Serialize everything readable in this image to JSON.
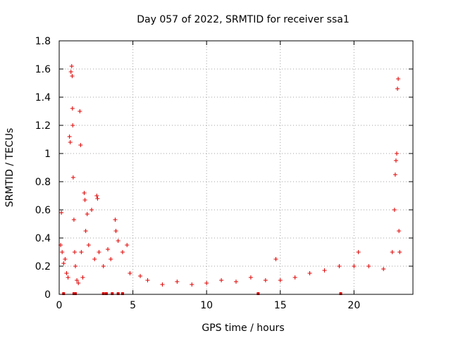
{
  "chart_data": {
    "type": "scatter",
    "title": "Day 057 of 2022, SRMTID for receiver ssa1",
    "xlabel": "GPS time / hours",
    "ylabel": "SRMTID / TECUs",
    "xlim": [
      0,
      24
    ],
    "ylim": [
      0,
      1.8
    ],
    "xticks": [
      0,
      5,
      10,
      15,
      20
    ],
    "yticks": [
      0,
      0.2,
      0.4,
      0.6,
      0.8,
      1,
      1.2,
      1.4,
      1.6,
      1.8
    ],
    "xtick_labels": [
      "0",
      "5",
      "10",
      "15",
      "20"
    ],
    "ytick_labels": [
      "0",
      "0.2",
      "0.4",
      "0.6",
      "0.8",
      "1",
      "1.2",
      "1.4",
      "1.6",
      "1.8"
    ],
    "grid": true,
    "marker": "plus",
    "series": [
      {
        "name": "SRMTID",
        "color": "#e00000",
        "points": [
          [
            0.1,
            0.35
          ],
          [
            0.15,
            0.58
          ],
          [
            0.2,
            0.3
          ],
          [
            0.3,
            0.22
          ],
          [
            0.4,
            0.25
          ],
          [
            0.5,
            0.15
          ],
          [
            0.6,
            0.12
          ],
          [
            0.7,
            1.12
          ],
          [
            0.75,
            1.08
          ],
          [
            0.8,
            1.58
          ],
          [
            0.85,
            1.62
          ],
          [
            0.88,
            1.55
          ],
          [
            0.9,
            1.32
          ],
          [
            0.92,
            1.2
          ],
          [
            0.95,
            0.83
          ],
          [
            1.0,
            0.53
          ],
          [
            1.05,
            0.3
          ],
          [
            1.1,
            0.2
          ],
          [
            1.2,
            0.1
          ],
          [
            1.3,
            0.08
          ],
          [
            1.4,
            1.3
          ],
          [
            1.45,
            1.06
          ],
          [
            1.5,
            0.3
          ],
          [
            1.6,
            0.12
          ],
          [
            1.7,
            0.72
          ],
          [
            1.75,
            0.67
          ],
          [
            1.8,
            0.45
          ],
          [
            1.9,
            0.57
          ],
          [
            2.0,
            0.35
          ],
          [
            2.2,
            0.6
          ],
          [
            2.4,
            0.25
          ],
          [
            2.55,
            0.7
          ],
          [
            2.6,
            0.68
          ],
          [
            2.7,
            0.3
          ],
          [
            3.0,
            0.2
          ],
          [
            3.3,
            0.32
          ],
          [
            3.5,
            0.25
          ],
          [
            3.8,
            0.53
          ],
          [
            3.85,
            0.45
          ],
          [
            4.0,
            0.38
          ],
          [
            4.3,
            0.3
          ],
          [
            4.6,
            0.35
          ],
          [
            4.8,
            0.15
          ],
          [
            5.5,
            0.13
          ],
          [
            6.0,
            0.1
          ],
          [
            7.0,
            0.07
          ],
          [
            8.0,
            0.09
          ],
          [
            9.0,
            0.07
          ],
          [
            10.0,
            0.08
          ],
          [
            11.0,
            0.1
          ],
          [
            12.0,
            0.09
          ],
          [
            13.0,
            0.12
          ],
          [
            14.0,
            0.1
          ],
          [
            14.7,
            0.25
          ],
          [
            15.0,
            0.1
          ],
          [
            16.0,
            0.12
          ],
          [
            17.0,
            0.15
          ],
          [
            18.0,
            0.17
          ],
          [
            19.0,
            0.2
          ],
          [
            20.0,
            0.2
          ],
          [
            20.3,
            0.3
          ],
          [
            21.0,
            0.2
          ],
          [
            22.0,
            0.18
          ],
          [
            22.6,
            0.3
          ],
          [
            22.75,
            0.6
          ],
          [
            22.8,
            0.85
          ],
          [
            22.85,
            0.95
          ],
          [
            22.9,
            1.0
          ],
          [
            22.95,
            1.46
          ],
          [
            23.0,
            1.53
          ],
          [
            23.05,
            0.45
          ],
          [
            23.1,
            0.3
          ]
        ],
        "zero_markers": [
          0.3,
          1.0,
          1.1,
          3.0,
          3.2,
          3.6,
          4.0,
          4.3,
          13.5,
          19.1
        ]
      }
    ]
  },
  "colors": {
    "data": "#e00000",
    "grid": "#a0a0a0",
    "axis": "#000000"
  }
}
